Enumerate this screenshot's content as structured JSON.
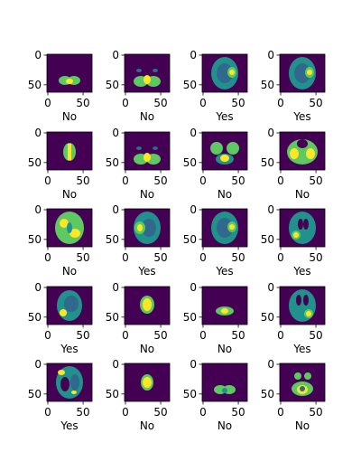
{
  "chart_data": {
    "type": "image_grid",
    "layout": {
      "rows": 5,
      "cols": 4
    },
    "axes": {
      "xticks": [
        "0",
        "50"
      ],
      "yticks": [
        "0",
        "50"
      ],
      "xlim": [
        0,
        64
      ],
      "ylim": [
        64,
        0
      ]
    },
    "colors": {
      "background": "#440154",
      "low": "#31688e",
      "mid": "#21918c",
      "high": "#5ec962",
      "peak": "#fde725"
    },
    "panels": [
      {
        "label": "No",
        "slice": "cerebellum-small"
      },
      {
        "label": "No",
        "slice": "cerebellum"
      },
      {
        "label": "Yes",
        "slice": "axial-tumor-right"
      },
      {
        "label": "Yes",
        "slice": "axial-tumor-right"
      },
      {
        "label": "No",
        "slice": "brainstem"
      },
      {
        "label": "No",
        "slice": "cerebellum"
      },
      {
        "label": "No",
        "slice": "temporal-lobes"
      },
      {
        "label": "No",
        "slice": "temporal-lobes-bright"
      },
      {
        "label": "No",
        "slice": "axial-bright"
      },
      {
        "label": "Yes",
        "slice": "axial-tumor-left"
      },
      {
        "label": "Yes",
        "slice": "axial-tumor-right"
      },
      {
        "label": "Yes",
        "slice": "axial-tumor-left-ventricles"
      },
      {
        "label": "Yes",
        "slice": "axial-tumor-left-small"
      },
      {
        "label": "No",
        "slice": "small-central"
      },
      {
        "label": "No",
        "slice": "flat-small"
      },
      {
        "label": "Yes",
        "slice": "axial-tumor-ventricles"
      },
      {
        "label": "Yes",
        "slice": "axial-tumor-mixed"
      },
      {
        "label": "No",
        "slice": "small-central-bright"
      },
      {
        "label": "No",
        "slice": "cerebellum-small-low"
      },
      {
        "label": "No",
        "slice": "fragments-bright"
      }
    ]
  }
}
